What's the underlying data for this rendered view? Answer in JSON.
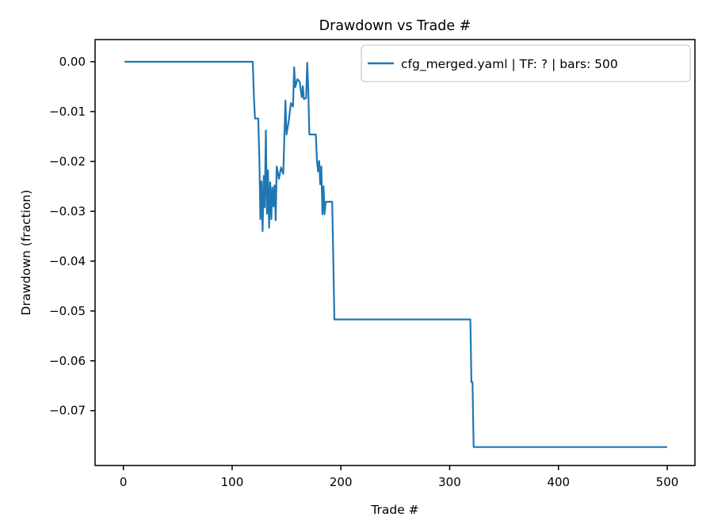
{
  "figure": {
    "title": "Drawdown vs Trade #",
    "xlabel": "Trade #",
    "ylabel": "Drawdown (fraction)"
  },
  "colors": {
    "line": "#1f77b4",
    "spine": "#000000",
    "legend_edge": "#cccccc",
    "background": "#ffffff"
  },
  "chart_data": {
    "type": "line",
    "title": "Drawdown vs Trade #",
    "xlabel": "Trade #",
    "ylabel": "Drawdown (fraction)",
    "grid": false,
    "legend_position": "upper right",
    "xlim": [
      -26,
      525.5
    ],
    "ylim": [
      -0.081,
      0.00444
    ],
    "xticks": {
      "values": [
        0,
        100,
        200,
        300,
        400,
        500
      ],
      "labels": [
        "0",
        "100",
        "200",
        "300",
        "400",
        "500"
      ]
    },
    "yticks": {
      "values": [
        0.0,
        -0.01,
        -0.02,
        -0.03,
        -0.04,
        -0.05,
        -0.06,
        -0.07
      ],
      "labels": [
        "0.00",
        "−0.01",
        "−0.02",
        "−0.03",
        "−0.04",
        "−0.05",
        "−0.06",
        "−0.07"
      ]
    },
    "series": [
      {
        "name": "cfg_merged.yaml | TF: ? | bars: 500",
        "color": "#1f77b4",
        "points": [
          [
            1,
            0.0
          ],
          [
            119,
            0.0
          ],
          [
            120,
            -0.007
          ],
          [
            121,
            -0.0114
          ],
          [
            124,
            -0.0114
          ],
          [
            125,
            -0.0194
          ],
          [
            126,
            -0.0316
          ],
          [
            127,
            -0.024
          ],
          [
            128,
            -0.034
          ],
          [
            129,
            -0.0229
          ],
          [
            130,
            -0.0292
          ],
          [
            131,
            -0.0138
          ],
          [
            132,
            -0.0305
          ],
          [
            133,
            -0.0218
          ],
          [
            134,
            -0.0333
          ],
          [
            135,
            -0.0242
          ],
          [
            136,
            -0.0316
          ],
          [
            137,
            -0.0252
          ],
          [
            138,
            -0.029
          ],
          [
            139,
            -0.0248
          ],
          [
            140,
            -0.0318
          ],
          [
            141,
            -0.021
          ],
          [
            143,
            -0.0235
          ],
          [
            145,
            -0.0212
          ],
          [
            147,
            -0.0225
          ],
          [
            149,
            -0.0078
          ],
          [
            150,
            -0.0146
          ],
          [
            152,
            -0.012
          ],
          [
            154,
            -0.0083
          ],
          [
            156,
            -0.009
          ],
          [
            157,
            -0.0011
          ],
          [
            158,
            -0.0051
          ],
          [
            160,
            -0.0035
          ],
          [
            162,
            -0.004
          ],
          [
            164,
            -0.0071
          ],
          [
            165,
            -0.0049
          ],
          [
            166,
            -0.0075
          ],
          [
            168,
            -0.0073
          ],
          [
            169,
            -0.0002
          ],
          [
            170,
            -0.0055
          ],
          [
            171,
            -0.0146
          ],
          [
            177,
            -0.0146
          ],
          [
            178,
            -0.0199
          ],
          [
            179,
            -0.022
          ],
          [
            180,
            -0.0199
          ],
          [
            181,
            -0.0246
          ],
          [
            182,
            -0.021
          ],
          [
            183,
            -0.0306
          ],
          [
            184,
            -0.025
          ],
          [
            185,
            -0.0306
          ],
          [
            186,
            -0.0281
          ],
          [
            192,
            -0.0281
          ],
          [
            193,
            -0.0395
          ],
          [
            194,
            -0.0517
          ],
          [
            319,
            -0.0517
          ],
          [
            320,
            -0.0643
          ],
          [
            321,
            -0.0643
          ],
          [
            322,
            -0.0773
          ],
          [
            500,
            -0.0773
          ]
        ]
      }
    ]
  }
}
